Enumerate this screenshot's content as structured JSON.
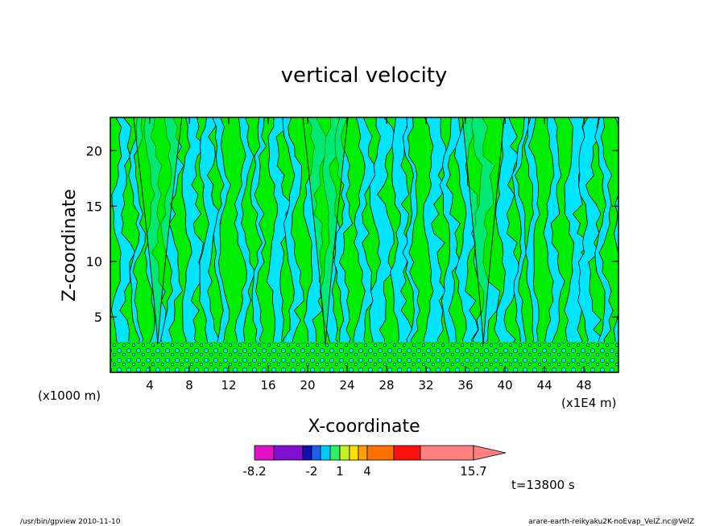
{
  "chart_data": {
    "type": "heatmap",
    "title": "vertical velocity",
    "xlabel": "X-coordinate",
    "ylabel": "Z-coordinate",
    "x_unit": "(x1E4 m)",
    "z_unit": "(x1000 m)",
    "xlim": [
      0,
      51.5
    ],
    "ylim": [
      0,
      23
    ],
    "x_ticks": [
      4,
      8,
      12,
      16,
      20,
      24,
      28,
      32,
      36,
      40,
      44,
      48
    ],
    "y_ticks": [
      5,
      10,
      15,
      20
    ],
    "field_colors": {
      "negative_small": "#00e5ff",
      "positive_small": "#00ee00",
      "contour": "#000000"
    },
    "colorbar": {
      "colors": [
        "#e010c8",
        "#8010d0",
        "#1010b0",
        "#1860f0",
        "#00c8ff",
        "#30f060",
        "#c8f020",
        "#ffe000",
        "#ffa000",
        "#ff7000",
        "#ff1010",
        "#ff8080"
      ],
      "tick_labels": [
        "-8.2",
        "-2",
        "1",
        "4",
        "15.7"
      ],
      "extend": "right"
    },
    "time_label": "t=13800 s"
  },
  "footer": {
    "left": "/usr/bin/gpview   2010-11-10",
    "right": "arare-earth-reikyaku2K-noEvap_VelZ.nc@VelZ"
  }
}
